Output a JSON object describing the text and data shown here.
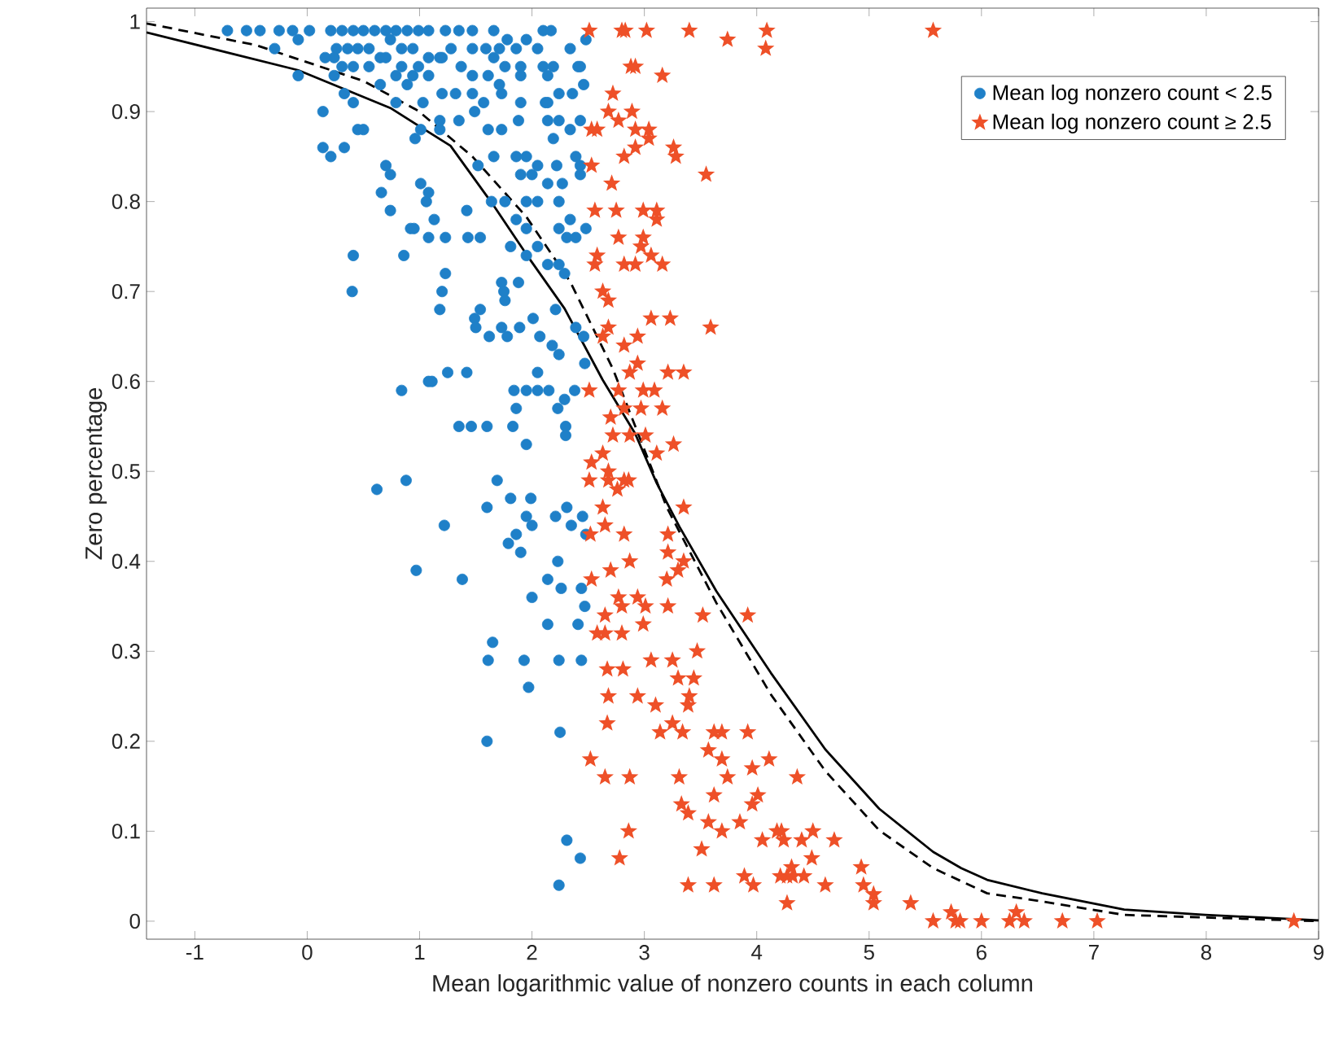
{
  "chart_data": {
    "type": "scatter",
    "xlabel": "Mean logarithmic value of nonzero counts in each column",
    "ylabel": "Zero percentage",
    "xlim": [
      -1.43,
      9
    ],
    "ylim": [
      -0.02,
      1.015
    ],
    "xticks": [
      -1,
      0,
      1,
      2,
      3,
      4,
      5,
      6,
      7,
      8,
      9
    ],
    "yticks": [
      0,
      0.1,
      0.2,
      0.3,
      0.4,
      0.5,
      0.6,
      0.7,
      0.8,
      0.9,
      1
    ],
    "legend": "top right",
    "series": [
      {
        "name": "Mean log nonzero count < 2.5",
        "color": "#1f80c8",
        "marker": "circle",
        "x": [
          -0.71,
          -0.54,
          -0.42,
          -0.25,
          -0.13,
          0.02,
          0.21,
          0.31,
          0.41,
          0.5,
          0.6,
          0.7,
          0.79,
          0.89,
          0.99,
          1.08,
          1.23,
          1.35,
          1.47,
          1.66,
          1.78,
          1.95,
          2.1,
          2.17,
          2.48,
          -0.29,
          -0.08,
          0.16,
          0.26,
          0.36,
          0.45,
          0.55,
          0.65,
          0.74,
          0.84,
          0.94,
          1.08,
          1.2,
          1.28,
          1.47,
          1.59,
          1.71,
          1.86,
          2.05,
          2.34,
          0.24,
          0.31,
          0.55,
          0.7,
          0.84,
          0.99,
          1.18,
          1.37,
          1.66,
          1.76,
          1.9,
          2.1,
          2.19,
          2.41,
          -0.08,
          0.24,
          0.41,
          0.79,
          0.94,
          1.08,
          1.47,
          1.61,
          1.9,
          2.14,
          2.43,
          0.33,
          0.65,
          0.89,
          1.2,
          1.32,
          1.47,
          1.71,
          1.73,
          1.9,
          2.12,
          2.24,
          2.36,
          2.46,
          0.41,
          0.79,
          1.03,
          1.57,
          2.14,
          0.14,
          0.5,
          0.45,
          0.96,
          1.01,
          1.18,
          1.35,
          1.49,
          1.18,
          1.61,
          1.73,
          1.88,
          2.14,
          2.24,
          2.34,
          2.43,
          2.19,
          0.14,
          0.21,
          0.33,
          0.7,
          0.74,
          1.52,
          1.66,
          1.86,
          1.95,
          2.05,
          2.22,
          2.43,
          2.39,
          2.43,
          1.9,
          2.0,
          2.14,
          2.27,
          0.66,
          1.01,
          1.08,
          1.42,
          1.64,
          1.76,
          1.95,
          2.05,
          2.24,
          0.74,
          1.06,
          1.13,
          1.86,
          1.95,
          2.24,
          2.34,
          2.48,
          2.31,
          2.39,
          0.41,
          0.86,
          0.92,
          0.95,
          1.08,
          1.23,
          1.43,
          1.54,
          1.81,
          1.88,
          1.95,
          2.14,
          2.24,
          2.29,
          2.05,
          0.4,
          1.23,
          1.73,
          1.75,
          1.76,
          1.2,
          1.18,
          1.49,
          1.54,
          1.5,
          1.73,
          1.78,
          1.62,
          1.89,
          2.01,
          2.07,
          2.18,
          2.24,
          2.21,
          2.39,
          2.46,
          2.47,
          0.84,
          1.08,
          1.11,
          1.25,
          1.42,
          1.84,
          1.86,
          1.95,
          2.05,
          2.05,
          2.15,
          2.23,
          2.29,
          2.38,
          1.35,
          1.46,
          1.6,
          1.83,
          1.95,
          2.3,
          2.3,
          0.62,
          0.88,
          1.22,
          0.97,
          1.38,
          1.6,
          1.69,
          1.81,
          1.86,
          1.79,
          1.9,
          1.95,
          1.99,
          2.0,
          2.21,
          2.31,
          2.35,
          2.45,
          2.48,
          2.23,
          2.14,
          2.26,
          2.44,
          2.47,
          2.0,
          2.14,
          2.41,
          1.65,
          1.61,
          1.93,
          2.24,
          2.44,
          1.97,
          1.6,
          2.25,
          2.31,
          2.43,
          2.24
        ],
        "values": [
          0.99,
          0.99,
          0.99,
          0.99,
          0.99,
          0.99,
          0.99,
          0.99,
          0.99,
          0.99,
          0.99,
          0.99,
          0.99,
          0.99,
          0.99,
          0.99,
          0.99,
          0.99,
          0.99,
          0.99,
          0.98,
          0.98,
          0.99,
          0.99,
          0.98,
          0.97,
          0.98,
          0.96,
          0.97,
          0.97,
          0.97,
          0.97,
          0.96,
          0.98,
          0.97,
          0.97,
          0.96,
          0.96,
          0.97,
          0.97,
          0.97,
          0.97,
          0.97,
          0.97,
          0.97,
          0.96,
          0.95,
          0.95,
          0.96,
          0.95,
          0.95,
          0.96,
          0.95,
          0.96,
          0.95,
          0.95,
          0.95,
          0.95,
          0.95,
          0.94,
          0.94,
          0.95,
          0.94,
          0.94,
          0.94,
          0.94,
          0.94,
          0.94,
          0.94,
          0.95,
          0.92,
          0.93,
          0.93,
          0.92,
          0.92,
          0.92,
          0.93,
          0.92,
          0.91,
          0.91,
          0.92,
          0.92,
          0.93,
          0.91,
          0.91,
          0.91,
          0.91,
          0.91,
          0.9,
          0.88,
          0.88,
          0.87,
          0.88,
          0.88,
          0.89,
          0.9,
          0.89,
          0.88,
          0.88,
          0.89,
          0.89,
          0.89,
          0.88,
          0.89,
          0.87,
          0.86,
          0.85,
          0.86,
          0.84,
          0.83,
          0.84,
          0.85,
          0.85,
          0.85,
          0.84,
          0.84,
          0.84,
          0.85,
          0.83,
          0.83,
          0.83,
          0.82,
          0.82,
          0.81,
          0.82,
          0.81,
          0.79,
          0.8,
          0.8,
          0.8,
          0.8,
          0.8,
          0.79,
          0.8,
          0.78,
          0.78,
          0.77,
          0.77,
          0.78,
          0.77,
          0.76,
          0.76,
          0.74,
          0.74,
          0.77,
          0.77,
          0.76,
          0.76,
          0.76,
          0.76,
          0.75,
          0.71,
          0.74,
          0.73,
          0.73,
          0.72,
          0.75,
          0.7,
          0.72,
          0.71,
          0.7,
          0.69,
          0.7,
          0.68,
          0.67,
          0.68,
          0.66,
          0.66,
          0.65,
          0.65,
          0.66,
          0.67,
          0.65,
          0.64,
          0.63,
          0.68,
          0.66,
          0.65,
          0.62,
          0.59,
          0.6,
          0.6,
          0.61,
          0.61,
          0.59,
          0.57,
          0.59,
          0.61,
          0.59,
          0.59,
          0.57,
          0.58,
          0.59,
          0.55,
          0.55,
          0.55,
          0.55,
          0.53,
          0.55,
          0.54,
          0.48,
          0.49,
          0.44,
          0.39,
          0.38,
          0.46,
          0.49,
          0.47,
          0.43,
          0.42,
          0.41,
          0.45,
          0.47,
          0.44,
          0.45,
          0.46,
          0.44,
          0.45,
          0.43,
          0.4,
          0.38,
          0.37,
          0.37,
          0.35,
          0.36,
          0.33,
          0.33,
          0.31,
          0.29,
          0.29,
          0.29,
          0.29,
          0.26,
          0.2,
          0.21,
          0.09,
          0.07,
          0.04
        ]
      },
      {
        "name": "Mean log nonzero count ≥ 2.5",
        "color": "#ee5028",
        "marker": "star",
        "x": [
          2.51,
          2.8,
          2.83,
          3.02,
          3.4,
          3.74,
          2.88,
          2.92,
          3.16,
          2.72,
          2.68,
          2.77,
          2.89,
          2.53,
          2.58,
          2.92,
          3.04,
          3.04,
          3.26,
          3.28,
          2.82,
          2.92,
          3.55,
          2.53,
          2.71,
          2.56,
          2.75,
          2.99,
          3.11,
          3.11,
          2.77,
          2.99,
          2.97,
          2.58,
          2.56,
          2.82,
          2.92,
          3.06,
          3.16,
          2.63,
          2.68,
          3.06,
          3.23,
          3.59,
          2.68,
          2.63,
          2.82,
          2.94,
          2.94,
          2.87,
          3.21,
          3.35,
          2.51,
          2.77,
          2.99,
          3.09,
          2.82,
          2.97,
          3.16,
          2.7,
          2.87,
          3.01,
          3.26,
          2.72,
          2.63,
          2.53,
          3.11,
          2.68,
          2.51,
          2.68,
          2.82,
          2.86,
          2.76,
          3.35,
          2.63,
          2.65,
          2.82,
          2.52,
          3.21,
          3.21,
          3.35,
          2.87,
          2.7,
          2.53,
          3.3,
          3.2,
          3.52,
          2.77,
          2.94,
          3.01,
          3.21,
          2.8,
          2.65,
          2.58,
          2.65,
          2.8,
          2.99,
          3.47,
          3.06,
          2.67,
          2.81,
          3.25,
          3.3,
          3.44,
          2.68,
          2.94,
          3.1,
          3.4,
          3.39,
          2.67,
          3.14,
          3.25,
          3.34,
          3.62,
          3.69,
          2.52,
          2.65,
          2.87,
          3.31,
          3.57,
          3.69,
          3.74,
          3.33,
          3.62,
          3.39,
          3.57,
          3.69,
          2.86,
          2.78,
          3.51,
          3.39,
          3.62,
          4.09,
          4.08,
          5.57,
          3.92,
          3.92,
          4.11,
          3.96,
          4.36,
          4.01,
          3.96,
          3.85,
          4.05,
          4.18,
          4.22,
          4.24,
          4.4,
          4.5,
          4.69,
          4.49,
          4.21,
          4.27,
          4.32,
          4.31,
          4.42,
          3.89,
          3.97,
          4.27,
          4.61,
          4.93,
          4.95,
          5.04,
          5.04,
          5.37,
          5.57,
          5.73,
          5.77,
          5.81,
          6.0,
          6.25,
          6.31,
          6.38,
          6.72,
          7.03,
          8.78
        ],
        "values": [
          0.99,
          0.99,
          0.99,
          0.99,
          0.99,
          0.98,
          0.95,
          0.95,
          0.94,
          0.92,
          0.9,
          0.89,
          0.9,
          0.88,
          0.88,
          0.88,
          0.88,
          0.87,
          0.86,
          0.85,
          0.85,
          0.86,
          0.83,
          0.84,
          0.82,
          0.79,
          0.79,
          0.79,
          0.79,
          0.78,
          0.76,
          0.76,
          0.75,
          0.74,
          0.73,
          0.73,
          0.73,
          0.74,
          0.73,
          0.7,
          0.69,
          0.67,
          0.67,
          0.66,
          0.66,
          0.65,
          0.64,
          0.65,
          0.62,
          0.61,
          0.61,
          0.61,
          0.59,
          0.59,
          0.59,
          0.59,
          0.57,
          0.57,
          0.57,
          0.56,
          0.54,
          0.54,
          0.53,
          0.54,
          0.52,
          0.51,
          0.52,
          0.5,
          0.49,
          0.49,
          0.49,
          0.49,
          0.48,
          0.46,
          0.46,
          0.44,
          0.43,
          0.43,
          0.43,
          0.41,
          0.4,
          0.4,
          0.39,
          0.38,
          0.39,
          0.38,
          0.34,
          0.36,
          0.36,
          0.35,
          0.35,
          0.35,
          0.34,
          0.32,
          0.32,
          0.32,
          0.33,
          0.3,
          0.29,
          0.28,
          0.28,
          0.29,
          0.27,
          0.27,
          0.25,
          0.25,
          0.24,
          0.25,
          0.24,
          0.22,
          0.21,
          0.22,
          0.21,
          0.21,
          0.21,
          0.18,
          0.16,
          0.16,
          0.16,
          0.19,
          0.18,
          0.16,
          0.13,
          0.14,
          0.12,
          0.11,
          0.1,
          0.1,
          0.07,
          0.08,
          0.04,
          0.04,
          0.99,
          0.97,
          0.99,
          0.34,
          0.21,
          0.18,
          0.17,
          0.16,
          0.14,
          0.13,
          0.11,
          0.09,
          0.1,
          0.1,
          0.09,
          0.09,
          0.1,
          0.09,
          0.07,
          0.05,
          0.05,
          0.05,
          0.06,
          0.05,
          0.05,
          0.04,
          0.02,
          0.04,
          0.06,
          0.04,
          0.03,
          0.02,
          0.02,
          0.0,
          0.01,
          0.0,
          0.0,
          0.0,
          0.0,
          0.01,
          0.0,
          0.0,
          0.0,
          0.0
        ]
      },
      {
        "type": "line",
        "color": "#000000",
        "line_style": "solid",
        "marker": "none",
        "x": [
          -1.43,
          -0.08,
          0.74,
          1.275,
          1.662,
          1.952,
          2.29,
          2.628,
          2.918,
          3.11,
          3.31,
          3.64,
          4.126,
          4.61,
          5.09,
          5.57,
          5.82,
          6.05,
          6.54,
          7.27,
          7.99,
          9.0
        ],
        "values": [
          0.988,
          0.946,
          0.904,
          0.862,
          0.795,
          0.741,
          0.681,
          0.602,
          0.542,
          0.487,
          0.439,
          0.367,
          0.276,
          0.191,
          0.125,
          0.077,
          0.059,
          0.046,
          0.031,
          0.013,
          0.007,
          0.001
        ]
      },
      {
        "type": "line",
        "color": "#000000",
        "line_style": "dashed",
        "marker": "none",
        "x": [
          -1.43,
          -0.46,
          0.5,
          0.986,
          1.47,
          1.95,
          2.34,
          2.72,
          3.2,
          3.64,
          4.126,
          4.61,
          5.09,
          5.57,
          6.05,
          6.54,
          7.27,
          9.0
        ],
        "values": [
          0.998,
          0.974,
          0.934,
          0.901,
          0.85,
          0.783,
          0.711,
          0.614,
          0.46,
          0.354,
          0.252,
          0.167,
          0.101,
          0.059,
          0.031,
          0.022,
          0.007,
          0.0
        ]
      }
    ]
  }
}
